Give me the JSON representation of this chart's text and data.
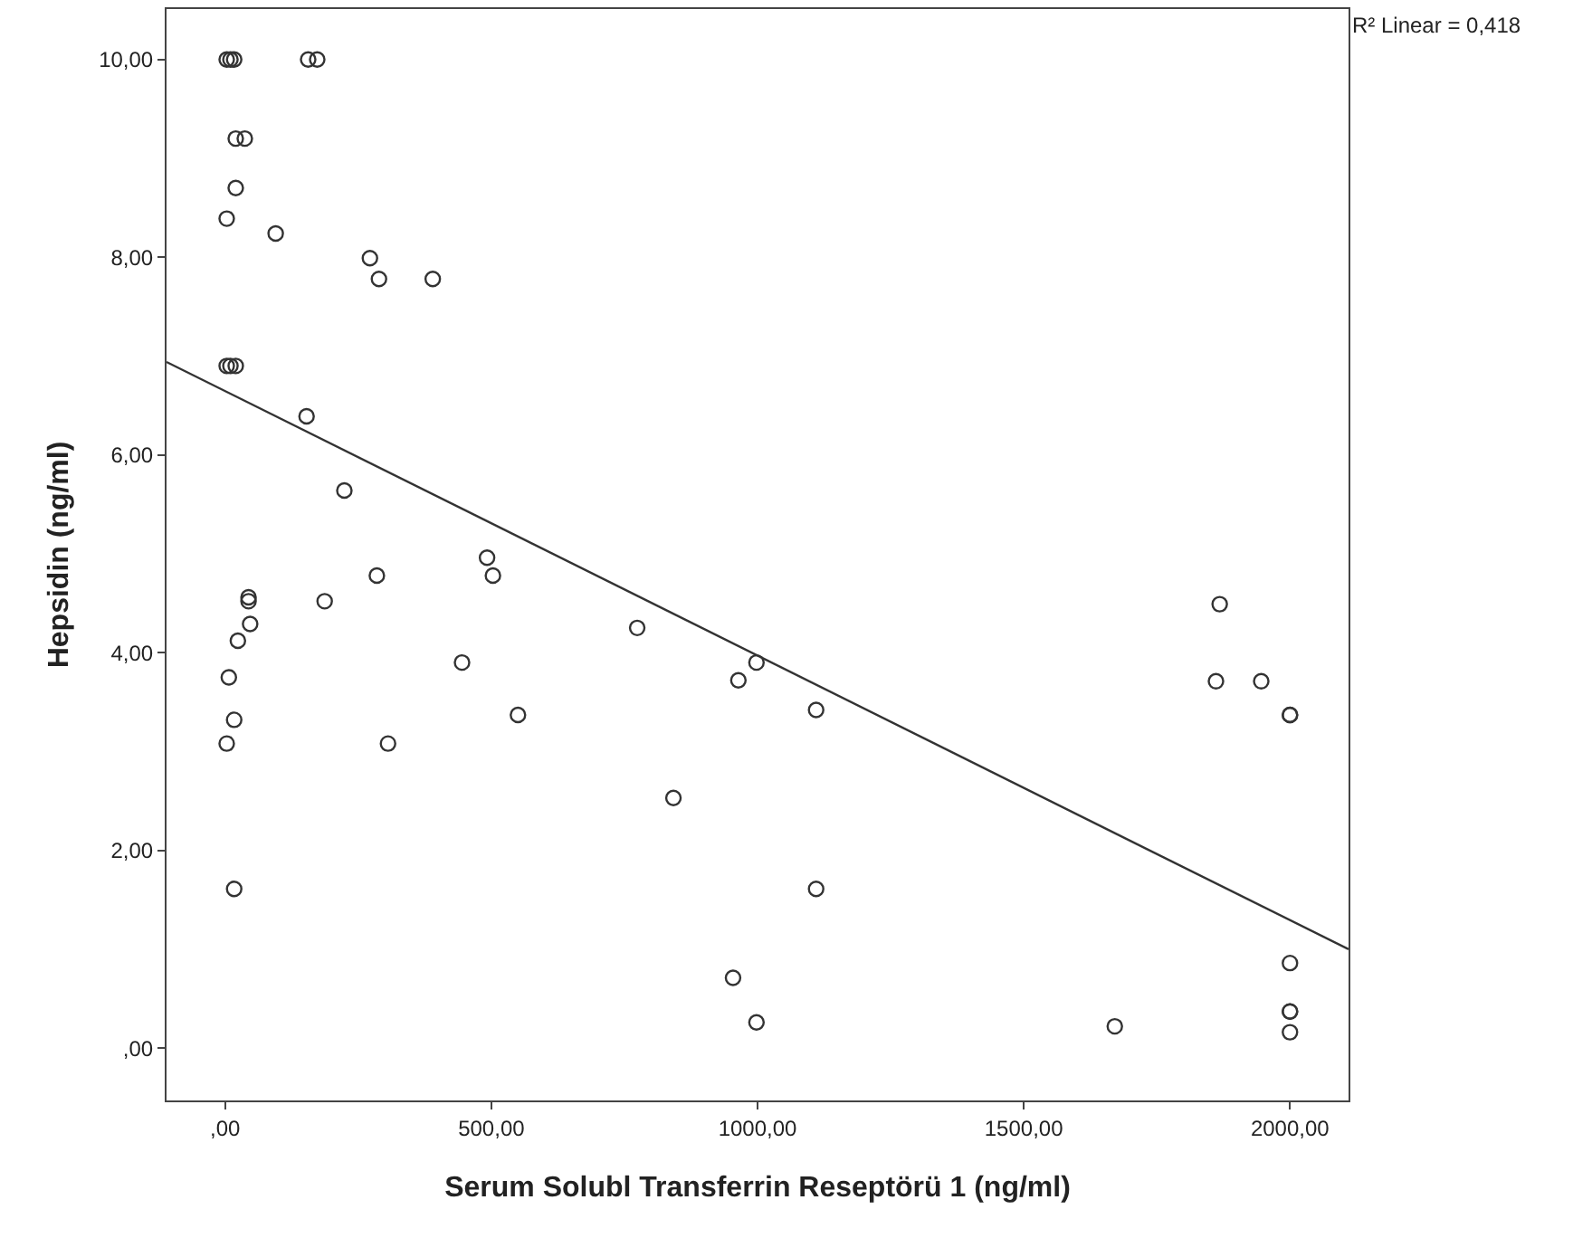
{
  "chart_data": {
    "type": "scatter",
    "xlabel": "Serum Solubl Transferrin Reseptörü 1 (ng/ml)",
    "ylabel": "Hepsidin (ng/ml)",
    "annotations": [
      "R² Linear = 0,418"
    ],
    "xlim": [
      -110,
      2110
    ],
    "ylim": [
      -0.53,
      10.51
    ],
    "xticks": [
      {
        "value": 0,
        "label": ",00"
      },
      {
        "value": 500,
        "label": "500,00"
      },
      {
        "value": 1000,
        "label": "1000,00"
      },
      {
        "value": 1500,
        "label": "1500,00"
      },
      {
        "value": 2000,
        "label": "2000,00"
      }
    ],
    "yticks": [
      {
        "value": 0,
        "label": ",00"
      },
      {
        "value": 2,
        "label": "2,00"
      },
      {
        "value": 4,
        "label": "4,00"
      },
      {
        "value": 6,
        "label": "6,00"
      },
      {
        "value": 8,
        "label": "8,00"
      },
      {
        "value": 10,
        "label": "10,00"
      }
    ],
    "grid": false,
    "marker": "circle",
    "series": [
      {
        "color": "#333333",
        "x": [
          3,
          10,
          17,
          156,
          173,
          20,
          37,
          20,
          3,
          95,
          272,
          289,
          390,
          3,
          10,
          20,
          153,
          224,
          492,
          503,
          44,
          44,
          187,
          285,
          47,
          24,
          7,
          445,
          774,
          964,
          998,
          1110,
          17,
          3,
          306,
          550,
          842,
          17,
          1110,
          954,
          998,
          1671,
          1868,
          1861,
          1946,
          2000,
          2000,
          2000,
          2000,
          2000,
          2000
        ],
        "values": [
          10,
          10,
          10,
          10,
          10,
          9.2,
          9.2,
          8.7,
          8.39,
          8.24,
          7.99,
          7.78,
          7.78,
          6.9,
          6.9,
          6.9,
          6.39,
          5.64,
          4.96,
          4.78,
          4.56,
          4.52,
          4.52,
          4.78,
          4.29,
          4.12,
          3.75,
          3.9,
          4.25,
          3.72,
          3.9,
          3.42,
          3.32,
          3.08,
          3.08,
          3.37,
          2.53,
          1.61,
          1.61,
          0.71,
          0.26,
          0.22,
          4.49,
          3.71,
          3.71,
          3.37,
          3.37,
          0.86,
          0.37,
          0.37,
          0.16
        ]
      },
      {
        "type": "line",
        "marker": "none",
        "color": "#333333",
        "x": [
          -110,
          2110
        ],
        "values": [
          6.94,
          1.0
        ]
      }
    ]
  }
}
